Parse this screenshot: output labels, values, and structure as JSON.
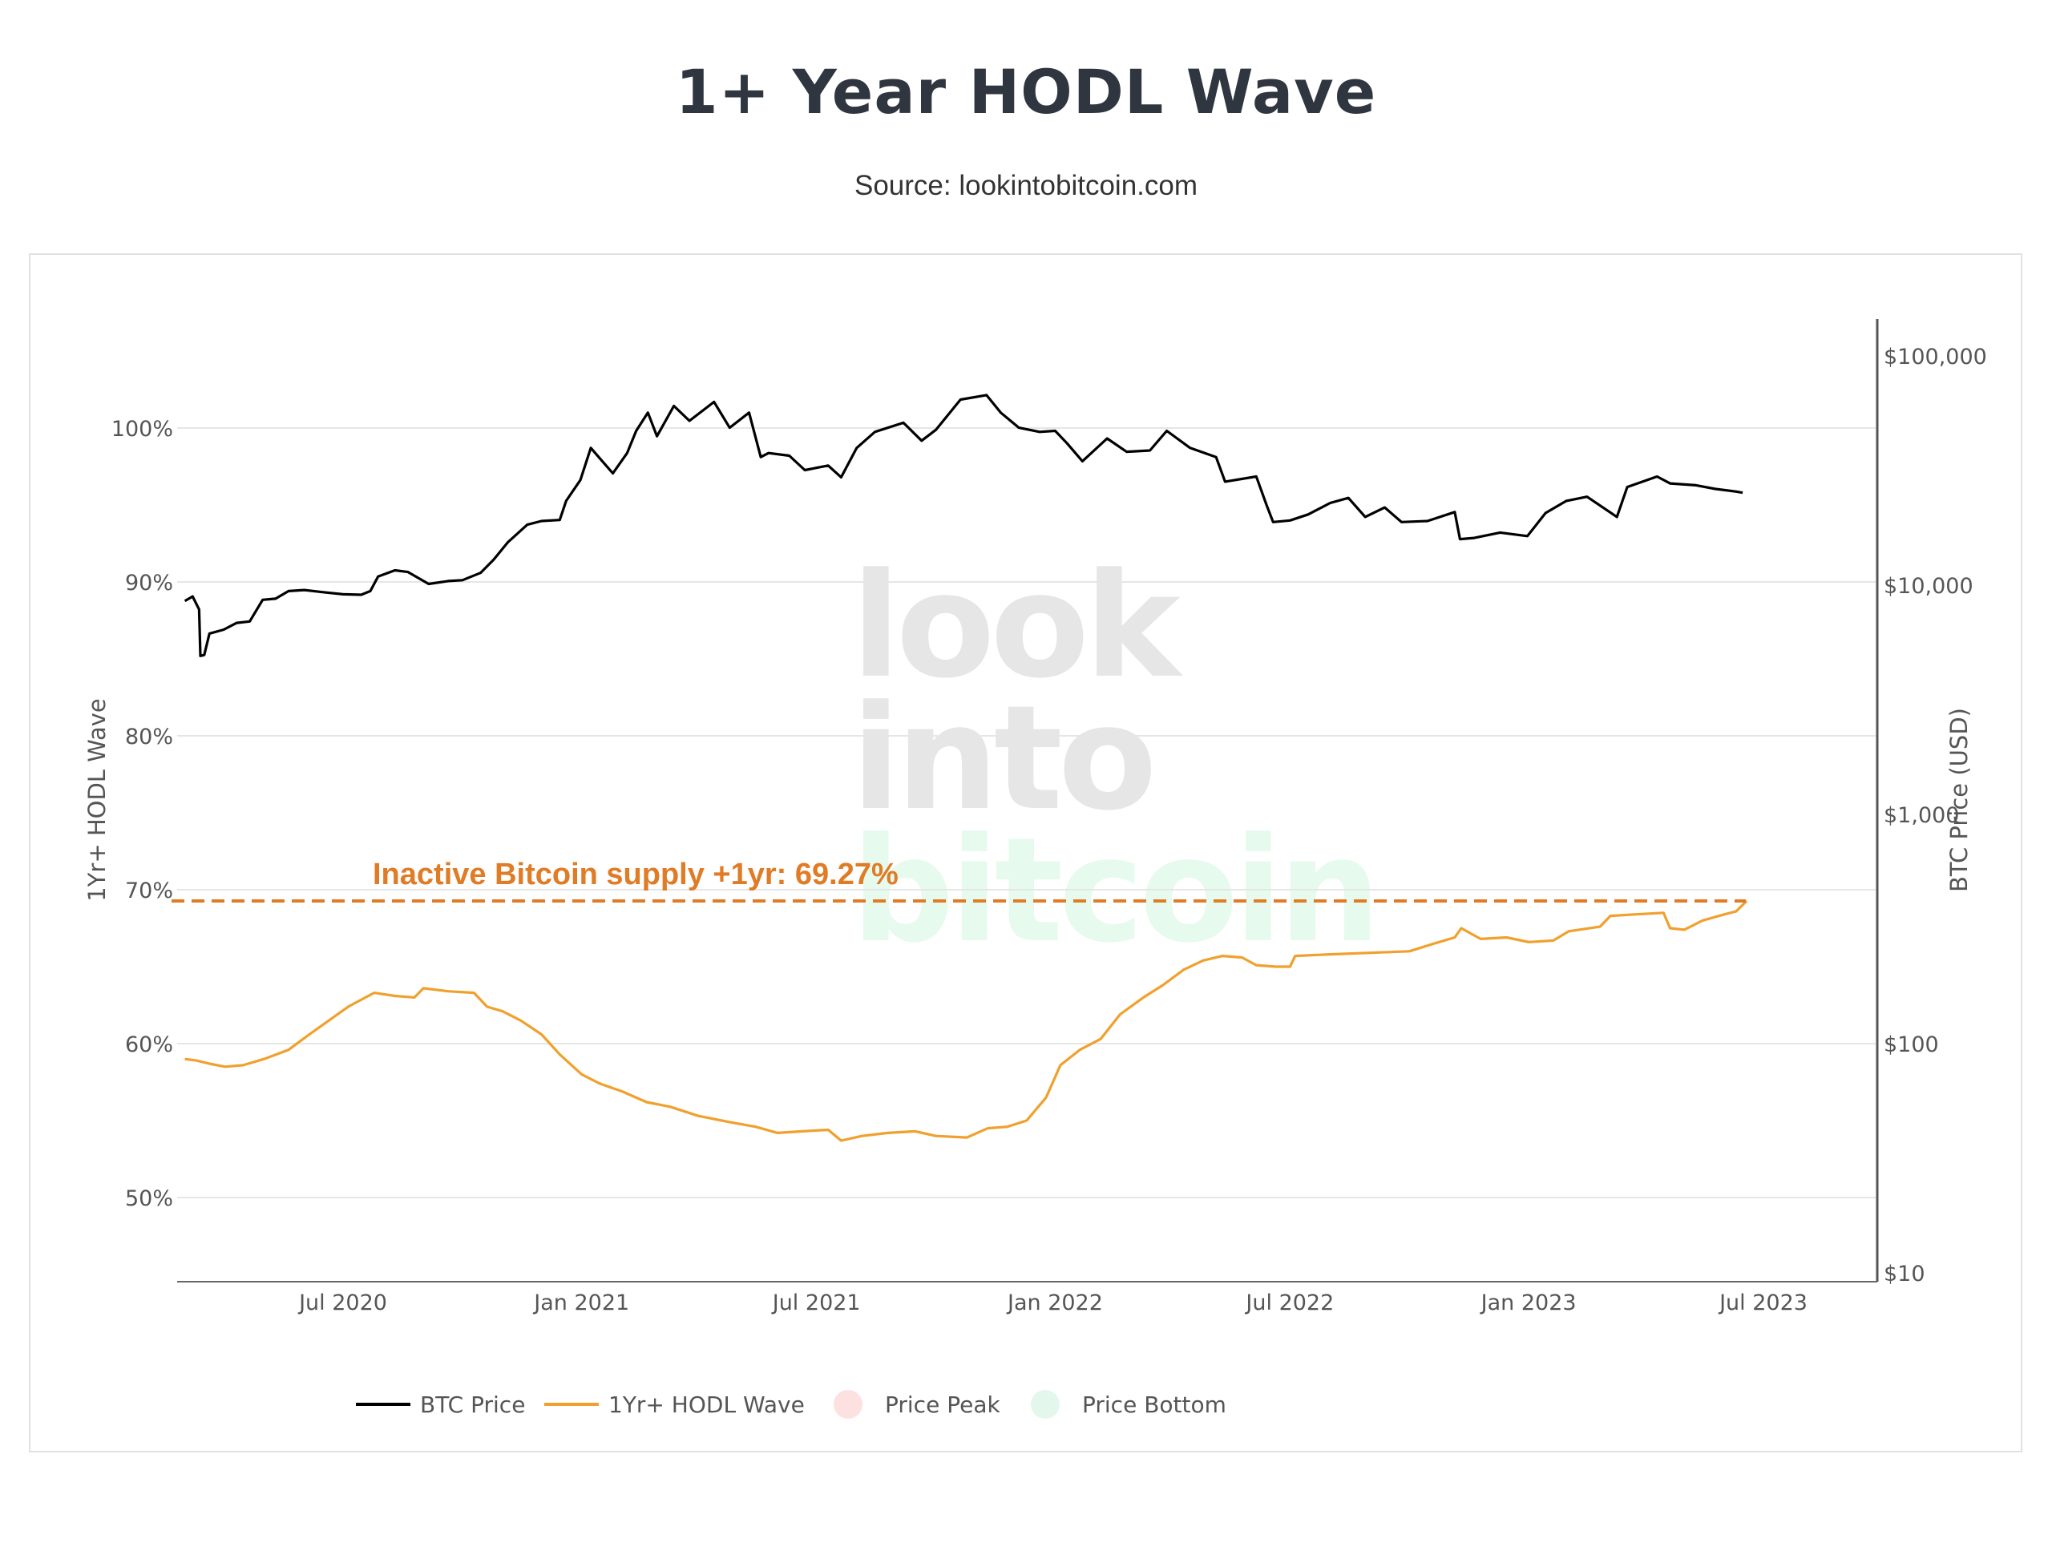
{
  "page": {
    "title": "1+ Year HODL Wave",
    "subtitle": "Source: lookintobitcoin.com"
  },
  "watermark": {
    "line1": "look",
    "line2": "into",
    "line3": "bitcoin",
    "color_gray": "#e6e6e6",
    "color_green": "#e6faed"
  },
  "chart_data": {
    "type": "line",
    "title": "1+ Year HODL Wave",
    "subtitle": "Source: lookintobitcoin.com",
    "x_axis": {
      "type": "date",
      "range": [
        "2020-03-01",
        "2023-08-05"
      ],
      "ticks": [
        {
          "date": "2020-07-01",
          "label": "Jul 2020"
        },
        {
          "date": "2021-01-01",
          "label": "Jan 2021"
        },
        {
          "date": "2021-07-01",
          "label": "Jul 2021"
        },
        {
          "date": "2022-01-01",
          "label": "Jan 2022"
        },
        {
          "date": "2022-07-01",
          "label": "Jul 2022"
        },
        {
          "date": "2023-01-01",
          "label": "Jan 2023"
        },
        {
          "date": "2023-07-01",
          "label": "Jul 2023"
        }
      ]
    },
    "y_axis_left": {
      "label": "1Yr+ HODL Wave",
      "range": [
        44.5,
        105.5
      ],
      "unit": "%",
      "ticks": [
        {
          "value": 50,
          "label": "50%"
        },
        {
          "value": 60,
          "label": "60%"
        },
        {
          "value": 70,
          "label": "70%"
        },
        {
          "value": 80,
          "label": "80%"
        },
        {
          "value": 90,
          "label": "90%"
        },
        {
          "value": 100,
          "label": "100%"
        }
      ],
      "grid": true
    },
    "y_axis_right": {
      "label": "BTC Price (USD)",
      "scale": "log",
      "range": [
        10,
        150000
      ],
      "ticks": [
        {
          "value": 10,
          "label": "$10"
        },
        {
          "value": 100,
          "label": "$100"
        },
        {
          "value": 1000,
          "label": "$1,000"
        },
        {
          "value": 10000,
          "label": "$10,000"
        },
        {
          "value": 100000,
          "label": "$100,000"
        }
      ]
    },
    "annotation": {
      "text": "Inactive Bitcoin supply +1yr: 69.27%",
      "value": 69.27,
      "line_style": "dashed",
      "color": "#e07b26"
    },
    "legend": {
      "placement": "bottom",
      "items": [
        {
          "label": "BTC Price",
          "type": "line",
          "color": "#000000"
        },
        {
          "label": "1Yr+ HODL Wave",
          "type": "line",
          "color": "#f0a02d"
        },
        {
          "label": "Price Peak",
          "type": "dot",
          "color": "#fde0e0"
        },
        {
          "label": "Price Bottom",
          "type": "dot",
          "color": "#e3f7ec"
        }
      ]
    },
    "series": [
      {
        "name": "BTC Price",
        "axis": "right",
        "color": "#000000",
        "points": [
          [
            "2020-03-01",
            8600
          ],
          [
            "2020-03-07",
            9000
          ],
          [
            "2020-03-12",
            7900
          ],
          [
            "2020-03-13",
            4950
          ],
          [
            "2020-03-16",
            5000
          ],
          [
            "2020-03-20",
            6200
          ],
          [
            "2020-03-31",
            6450
          ],
          [
            "2020-04-10",
            6900
          ],
          [
            "2020-04-20",
            7000
          ],
          [
            "2020-04-30",
            8700
          ],
          [
            "2020-05-10",
            8800
          ],
          [
            "2020-05-20",
            9500
          ],
          [
            "2020-06-01",
            9600
          ],
          [
            "2020-06-15",
            9400
          ],
          [
            "2020-07-01",
            9200
          ],
          [
            "2020-07-15",
            9150
          ],
          [
            "2020-07-22",
            9500
          ],
          [
            "2020-07-28",
            11000
          ],
          [
            "2020-08-10",
            11700
          ],
          [
            "2020-08-20",
            11500
          ],
          [
            "2020-09-05",
            10200
          ],
          [
            "2020-09-20",
            10500
          ],
          [
            "2020-10-01",
            10600
          ],
          [
            "2020-10-15",
            11400
          ],
          [
            "2020-10-25",
            13000
          ],
          [
            "2020-11-05",
            15500
          ],
          [
            "2020-11-20",
            18500
          ],
          [
            "2020-12-01",
            19200
          ],
          [
            "2020-12-15",
            19400
          ],
          [
            "2020-12-20",
            23500
          ],
          [
            "2020-12-31",
            29000
          ],
          [
            "2021-01-08",
            40000
          ],
          [
            "2021-01-15",
            36000
          ],
          [
            "2021-01-25",
            31000
          ],
          [
            "2021-02-05",
            38000
          ],
          [
            "2021-02-12",
            47500
          ],
          [
            "2021-02-21",
            57000
          ],
          [
            "2021-02-28",
            45000
          ],
          [
            "2021-03-13",
            61000
          ],
          [
            "2021-03-25",
            52500
          ],
          [
            "2021-04-13",
            63500
          ],
          [
            "2021-04-25",
            49000
          ],
          [
            "2021-05-10",
            57000
          ],
          [
            "2021-05-19",
            36500
          ],
          [
            "2021-05-25",
            38000
          ],
          [
            "2021-06-10",
            37000
          ],
          [
            "2021-06-22",
            32000
          ],
          [
            "2021-07-10",
            33500
          ],
          [
            "2021-07-20",
            29800
          ],
          [
            "2021-08-01",
            40000
          ],
          [
            "2021-08-15",
            47000
          ],
          [
            "2021-09-06",
            51500
          ],
          [
            "2021-09-20",
            43000
          ],
          [
            "2021-10-01",
            48000
          ],
          [
            "2021-10-20",
            65000
          ],
          [
            "2021-11-09",
            68000
          ],
          [
            "2021-11-20",
            57000
          ],
          [
            "2021-12-04",
            49000
          ],
          [
            "2021-12-20",
            47000
          ],
          [
            "2022-01-01",
            47500
          ],
          [
            "2022-01-10",
            42000
          ],
          [
            "2022-01-22",
            35000
          ],
          [
            "2022-02-10",
            44000
          ],
          [
            "2022-02-25",
            38500
          ],
          [
            "2022-03-15",
            39000
          ],
          [
            "2022-03-28",
            47500
          ],
          [
            "2022-04-15",
            40000
          ],
          [
            "2022-05-05",
            36500
          ],
          [
            "2022-05-12",
            28500
          ],
          [
            "2022-06-05",
            30000
          ],
          [
            "2022-06-13",
            22500
          ],
          [
            "2022-06-18",
            19000
          ],
          [
            "2022-07-01",
            19300
          ],
          [
            "2022-07-15",
            20500
          ],
          [
            "2022-08-01",
            23000
          ],
          [
            "2022-08-15",
            24200
          ],
          [
            "2022-08-28",
            20000
          ],
          [
            "2022-09-12",
            22000
          ],
          [
            "2022-09-25",
            19000
          ],
          [
            "2022-10-15",
            19200
          ],
          [
            "2022-11-05",
            21000
          ],
          [
            "2022-11-09",
            16000
          ],
          [
            "2022-11-20",
            16200
          ],
          [
            "2022-12-10",
            17100
          ],
          [
            "2022-12-31",
            16500
          ],
          [
            "2023-01-14",
            20800
          ],
          [
            "2023-01-30",
            23500
          ],
          [
            "2023-02-15",
            24500
          ],
          [
            "2023-03-10",
            20000
          ],
          [
            "2023-03-18",
            27000
          ],
          [
            "2023-04-10",
            30000
          ],
          [
            "2023-04-20",
            28000
          ],
          [
            "2023-05-10",
            27500
          ],
          [
            "2023-05-25",
            26500
          ],
          [
            "2023-06-10",
            25800
          ],
          [
            "2023-06-15",
            25500
          ]
        ]
      },
      {
        "name": "1Yr+ HODL Wave",
        "axis": "left",
        "color": "#f0a02d",
        "points": [
          [
            "2020-03-01",
            59.0
          ],
          [
            "2020-03-10",
            58.9
          ],
          [
            "2020-03-20",
            58.7
          ],
          [
            "2020-04-01",
            58.5
          ],
          [
            "2020-04-15",
            58.6
          ],
          [
            "2020-05-01",
            59.0
          ],
          [
            "2020-05-20",
            59.6
          ],
          [
            "2020-06-05",
            60.6
          ],
          [
            "2020-06-20",
            61.5
          ],
          [
            "2020-07-05",
            62.4
          ],
          [
            "2020-07-25",
            63.3
          ],
          [
            "2020-08-10",
            63.1
          ],
          [
            "2020-08-25",
            63.0
          ],
          [
            "2020-09-01",
            63.6
          ],
          [
            "2020-09-20",
            63.4
          ],
          [
            "2020-10-10",
            63.3
          ],
          [
            "2020-10-20",
            62.4
          ],
          [
            "2020-11-01",
            62.1
          ],
          [
            "2020-11-15",
            61.5
          ],
          [
            "2020-12-01",
            60.6
          ],
          [
            "2020-12-15",
            59.3
          ],
          [
            "2021-01-01",
            58.0
          ],
          [
            "2021-01-15",
            57.4
          ],
          [
            "2021-02-01",
            56.9
          ],
          [
            "2021-02-20",
            56.2
          ],
          [
            "2021-03-10",
            55.9
          ],
          [
            "2021-04-01",
            55.3
          ],
          [
            "2021-04-25",
            54.9
          ],
          [
            "2021-05-15",
            54.6
          ],
          [
            "2021-06-01",
            54.2
          ],
          [
            "2021-06-20",
            54.3
          ],
          [
            "2021-07-10",
            54.4
          ],
          [
            "2021-07-20",
            53.7
          ],
          [
            "2021-08-05",
            54.0
          ],
          [
            "2021-08-25",
            54.2
          ],
          [
            "2021-09-15",
            54.3
          ],
          [
            "2021-10-01",
            54.0
          ],
          [
            "2021-10-25",
            53.9
          ],
          [
            "2021-11-10",
            54.5
          ],
          [
            "2021-11-25",
            54.6
          ],
          [
            "2021-12-10",
            55.0
          ],
          [
            "2021-12-25",
            56.5
          ],
          [
            "2022-01-05",
            58.6
          ],
          [
            "2022-01-20",
            59.6
          ],
          [
            "2022-02-05",
            60.3
          ],
          [
            "2022-02-20",
            61.9
          ],
          [
            "2022-03-10",
            63.0
          ],
          [
            "2022-03-25",
            63.8
          ],
          [
            "2022-04-10",
            64.8
          ],
          [
            "2022-04-25",
            65.4
          ],
          [
            "2022-05-10",
            65.7
          ],
          [
            "2022-05-25",
            65.6
          ],
          [
            "2022-06-05",
            65.1
          ],
          [
            "2022-06-20",
            65.0
          ],
          [
            "2022-07-01",
            65.0
          ],
          [
            "2022-07-05",
            65.7
          ],
          [
            "2022-08-01",
            65.8
          ],
          [
            "2022-09-01",
            65.9
          ],
          [
            "2022-10-01",
            66.0
          ],
          [
            "2022-10-20",
            66.5
          ],
          [
            "2022-11-05",
            66.9
          ],
          [
            "2022-11-10",
            67.5
          ],
          [
            "2022-11-25",
            66.8
          ],
          [
            "2022-12-15",
            66.9
          ],
          [
            "2023-01-01",
            66.6
          ],
          [
            "2023-01-20",
            66.7
          ],
          [
            "2023-02-01",
            67.3
          ],
          [
            "2023-02-25",
            67.6
          ],
          [
            "2023-03-05",
            68.3
          ],
          [
            "2023-03-25",
            68.4
          ],
          [
            "2023-04-15",
            68.5
          ],
          [
            "2023-04-20",
            67.5
          ],
          [
            "2023-05-01",
            67.4
          ],
          [
            "2023-05-15",
            68.0
          ],
          [
            "2023-06-01",
            68.4
          ],
          [
            "2023-06-10",
            68.6
          ],
          [
            "2023-06-18",
            69.27
          ]
        ]
      }
    ]
  }
}
